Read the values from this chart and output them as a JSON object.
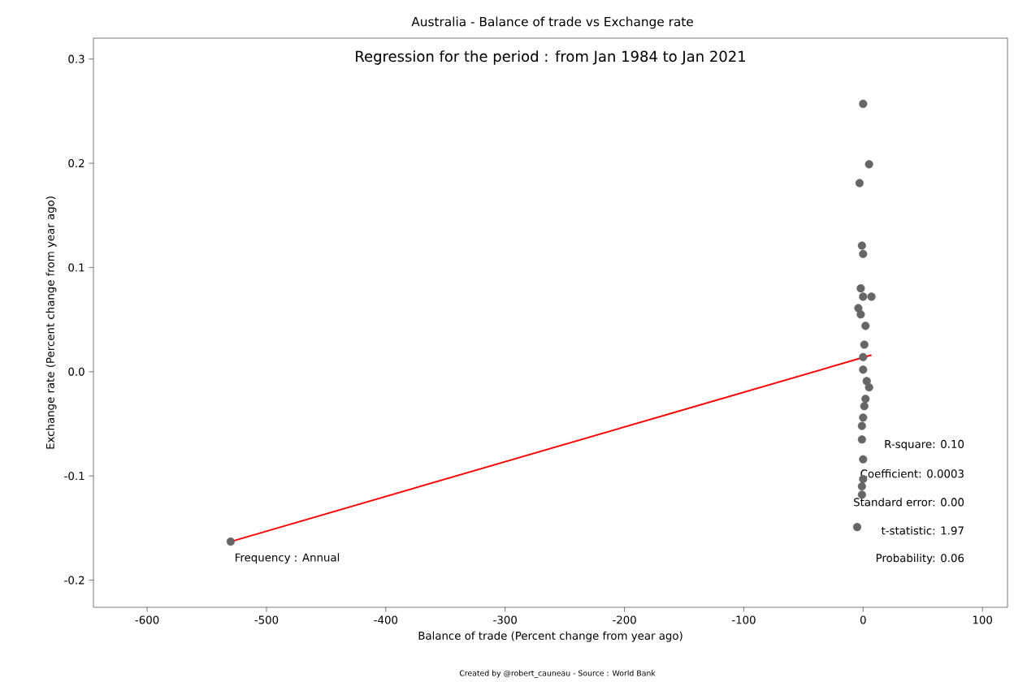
{
  "chart_data": {
    "type": "scatter",
    "title": "Australia  -  Balance of trade vs Exchange rate",
    "subtitle": "Regression for the period : from Jan 1984 to Jan 2021",
    "xlabel": "Balance of trade (Percent change from year ago)",
    "ylabel": "Exchange rate (Percent change from year ago)",
    "series": [
      {
        "color": "#666666",
        "marker": "circle",
        "x": [
          -530,
          0,
          5,
          -3,
          -1,
          0,
          -2,
          0,
          7,
          -4,
          -2,
          2,
          1,
          0,
          0,
          3,
          5,
          2,
          1,
          0,
          -1,
          -1,
          0,
          0,
          -1,
          -1,
          -5
        ],
        "values": [
          -0.163,
          0.257,
          0.199,
          0.181,
          0.121,
          0.113,
          0.08,
          0.072,
          0.072,
          0.061,
          0.055,
          0.044,
          0.026,
          0.014,
          0.002,
          -0.009,
          -0.015,
          -0.026,
          -0.033,
          -0.044,
          -0.052,
          -0.065,
          -0.084,
          -0.103,
          -0.11,
          -0.118,
          -0.149
        ]
      },
      {
        "type": "line",
        "color": "#ff0000",
        "marker": "none",
        "x": [
          -530,
          7
        ],
        "values": [
          -0.163,
          0.016
        ]
      }
    ],
    "xlim": [
      -645,
      121
    ],
    "ylim": [
      -0.226,
      0.32
    ],
    "xticks": [
      -600,
      -500,
      -400,
      -300,
      -200,
      -100,
      0,
      100
    ],
    "yticks": [
      -0.2,
      -0.1,
      {
        "value": 0,
        "label": "0.0"
      },
      0.1,
      0.2,
      0.3
    ],
    "annotations": [
      "Frequency : Annual",
      "R-square: 0.10",
      "Coefficient: 0.0003",
      "Standard error: 0.00",
      "t-statistic: 1.97",
      "Probability: 0.06",
      "Created by @robert_cauneau - Source : World Bank"
    ]
  }
}
